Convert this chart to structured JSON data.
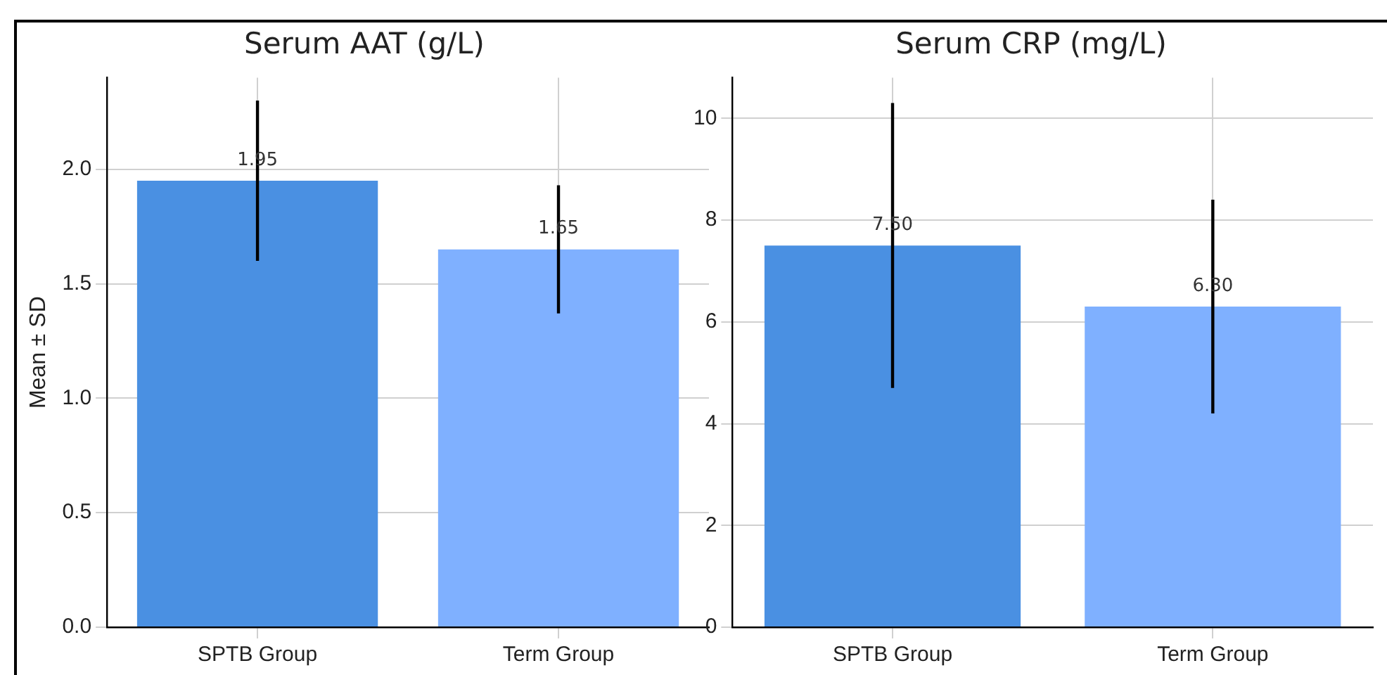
{
  "chart_data": [
    {
      "type": "bar",
      "title": "Serum AAT (g/L)",
      "ylabel": "Mean ± SD",
      "categories": [
        "SPTB Group",
        "Term Group"
      ],
      "values": [
        1.95,
        1.65
      ],
      "colors": [
        "#4a90e2",
        "#7fb0ff"
      ],
      "errors": [
        0.35,
        0.28
      ],
      "value_labels": [
        "1.95",
        "1.65"
      ],
      "ylim": [
        0,
        2.4
      ],
      "yticks": [
        {
          "value": 0,
          "label": "0.0"
        },
        {
          "value": 0.5,
          "label": "0.5"
        },
        {
          "value": 1,
          "label": "1.0"
        },
        {
          "value": 1.5,
          "label": "1.5"
        },
        {
          "value": 2,
          "label": "2.0"
        }
      ],
      "grid": true,
      "legend": false
    },
    {
      "type": "bar",
      "title": "Serum CRP (mg/L)",
      "categories": [
        "SPTB Group",
        "Term Group"
      ],
      "values": [
        7.5,
        6.3
      ],
      "colors": [
        "#4a90e2",
        "#7fb0ff"
      ],
      "errors": [
        2.8,
        2.1
      ],
      "value_labels": [
        "7.50",
        "6.30"
      ],
      "ylim": [
        0,
        10.8
      ],
      "yticks": [
        0,
        2,
        4,
        6,
        8,
        10
      ],
      "grid": true,
      "legend": false
    }
  ]
}
